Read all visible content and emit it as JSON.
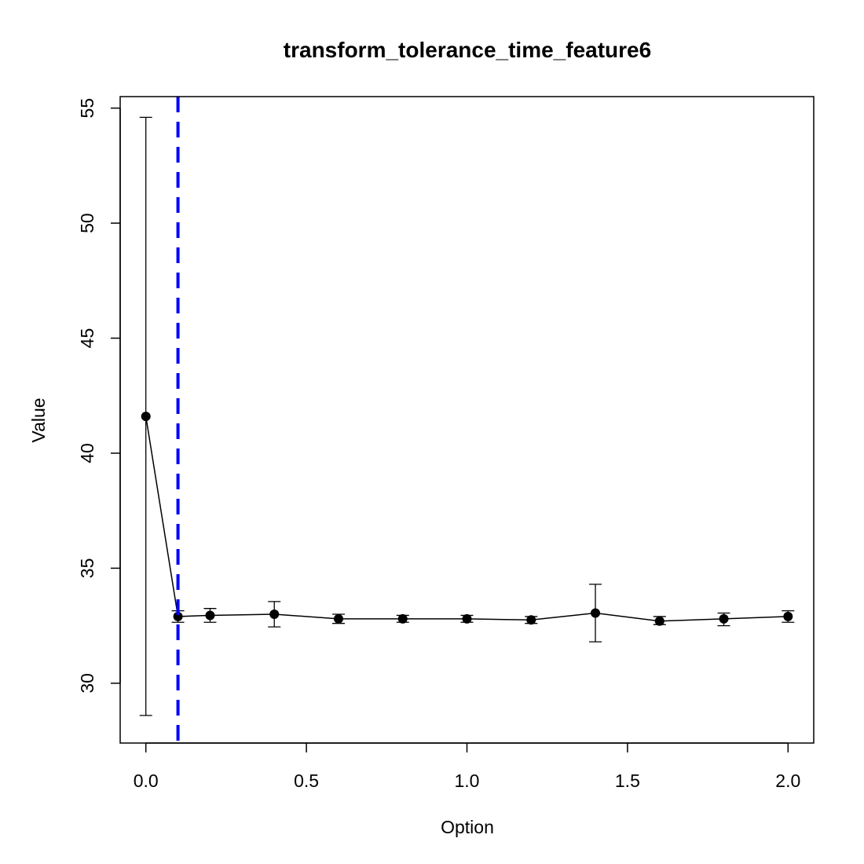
{
  "chart_data": {
    "type": "line",
    "title": "transform_tolerance_time_feature6",
    "xlabel": "Option",
    "ylabel": "Value",
    "xlim": [
      -0.08,
      2.08
    ],
    "ylim": [
      27.4,
      55.5
    ],
    "xticks": [
      {
        "value": 0.0,
        "label": "0.0"
      },
      {
        "value": 0.5,
        "label": "0.5"
      },
      {
        "value": 1.0,
        "label": "1.0"
      },
      {
        "value": 1.5,
        "label": "1.5"
      },
      {
        "value": 2.0,
        "label": "2.0"
      }
    ],
    "yticks": [
      {
        "value": 30,
        "label": "30"
      },
      {
        "value": 35,
        "label": "35"
      },
      {
        "value": 40,
        "label": "40"
      },
      {
        "value": 45,
        "label": "45"
      },
      {
        "value": 50,
        "label": "50"
      },
      {
        "value": 55,
        "label": "55"
      }
    ],
    "grid": false,
    "series": [
      {
        "x": [
          0.0,
          0.1,
          0.2,
          0.4,
          0.6,
          0.8,
          1.0,
          1.2,
          1.4,
          1.6,
          1.8,
          2.0
        ],
        "y": [
          41.6,
          32.9,
          32.95,
          33.0,
          32.8,
          32.8,
          32.8,
          32.75,
          33.05,
          32.7,
          32.8,
          32.9
        ],
        "error_low": [
          28.6,
          32.65,
          32.65,
          32.45,
          32.6,
          32.65,
          32.65,
          32.6,
          31.8,
          32.55,
          32.5,
          32.65
        ],
        "error_high": [
          54.6,
          33.15,
          33.25,
          33.55,
          33.0,
          32.95,
          32.95,
          32.9,
          34.3,
          32.9,
          33.05,
          33.15
        ],
        "color": "#000000"
      }
    ],
    "reference_line": {
      "orientation": "vertical",
      "x": 0.1,
      "color": "#0000FF",
      "style": "dashed"
    }
  }
}
